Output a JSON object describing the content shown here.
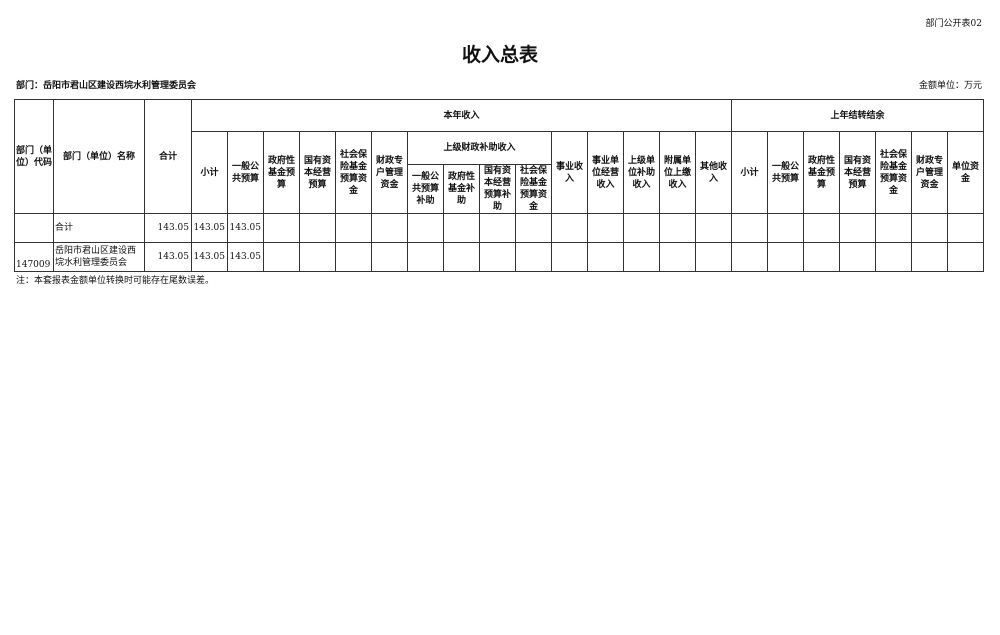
{
  "form_code": "部门公开表02",
  "title": "收入总表",
  "department": "部门：岳阳市君山区建设西垸水利管理委员会",
  "unit": "金额单位：万元",
  "headers": {
    "code": "部门（单位）代码",
    "name": "部门（单位）名称",
    "total": "合计",
    "current_year": "本年收入",
    "prior_year": "上年结转结余",
    "superior_subsidy": "上级财政补助收入",
    "current_cols_a": [
      "小计",
      "一般公共预算",
      "政府性基金预算",
      "国有资本经营预算",
      "社会保险基金预算资金",
      "财政专户管理资金"
    ],
    "subsidy_cols": [
      "一般公共预算补助",
      "政府性基金补助",
      "国有资本经营预算补助",
      "社会保险基金预算资金"
    ],
    "current_cols_b": [
      "事业收入",
      "事业单位经营收入",
      "上级单位补助收入",
      "附属单位上缴收入",
      "其他收入"
    ],
    "prior_cols": [
      "小计",
      "一般公共预算",
      "政府性基金预算",
      "国有资本经营预算",
      "社会保险基金预算资金",
      "财政专户管理资金",
      "单位资金"
    ]
  },
  "rows": [
    {
      "code": "",
      "name": "合计",
      "values": [
        "143.05",
        "143.05",
        "143.05"
      ]
    },
    {
      "code": "147009",
      "name": "岳阳市君山区建设西垸水利管理委员会",
      "values": [
        "143.05",
        "143.05",
        "143.05"
      ]
    }
  ],
  "note": "注：本套报表金额单位转换时可能存在尾数误差。"
}
